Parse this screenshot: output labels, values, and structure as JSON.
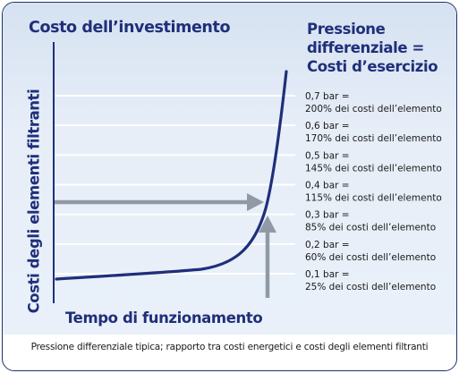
{
  "chart_data": {
    "type": "line",
    "title": "Costo dell’investimento",
    "right_title": [
      "Pressione",
      "differenziale =",
      "Costi d’esercizio"
    ],
    "xlabel": "Tempo di funzionamento",
    "ylabel": "Costi degli elementi filtranti",
    "caption": "Pressione differenziale tipica; rapporto tra costi energetici e costi degli elementi filtranti",
    "grid": true,
    "levels": [
      {
        "bar": "0,7 bar =",
        "cost": "200% dei costi dell’elemento"
      },
      {
        "bar": "0,6 bar =",
        "cost": "170% dei costi dell’elemento"
      },
      {
        "bar": "0,5 bar =",
        "cost": "145% dei costi dell’elemento"
      },
      {
        "bar": "0,4 bar =",
        "cost": "115% dei costi dell’elemento"
      },
      {
        "bar": "0,3 bar =",
        "cost": "85% dei costi dell’elemento"
      },
      {
        "bar": "0,2 bar =",
        "cost": "60% dei costi dell’elemento"
      },
      {
        "bar": "0,1 bar =",
        "cost": "25% dei costi dell’elemento"
      }
    ],
    "colors": {
      "curve": "#1f2f7a",
      "arrow": "#8f9aa6",
      "grid": "#ffffff",
      "text": "#1f2f7a"
    }
  }
}
